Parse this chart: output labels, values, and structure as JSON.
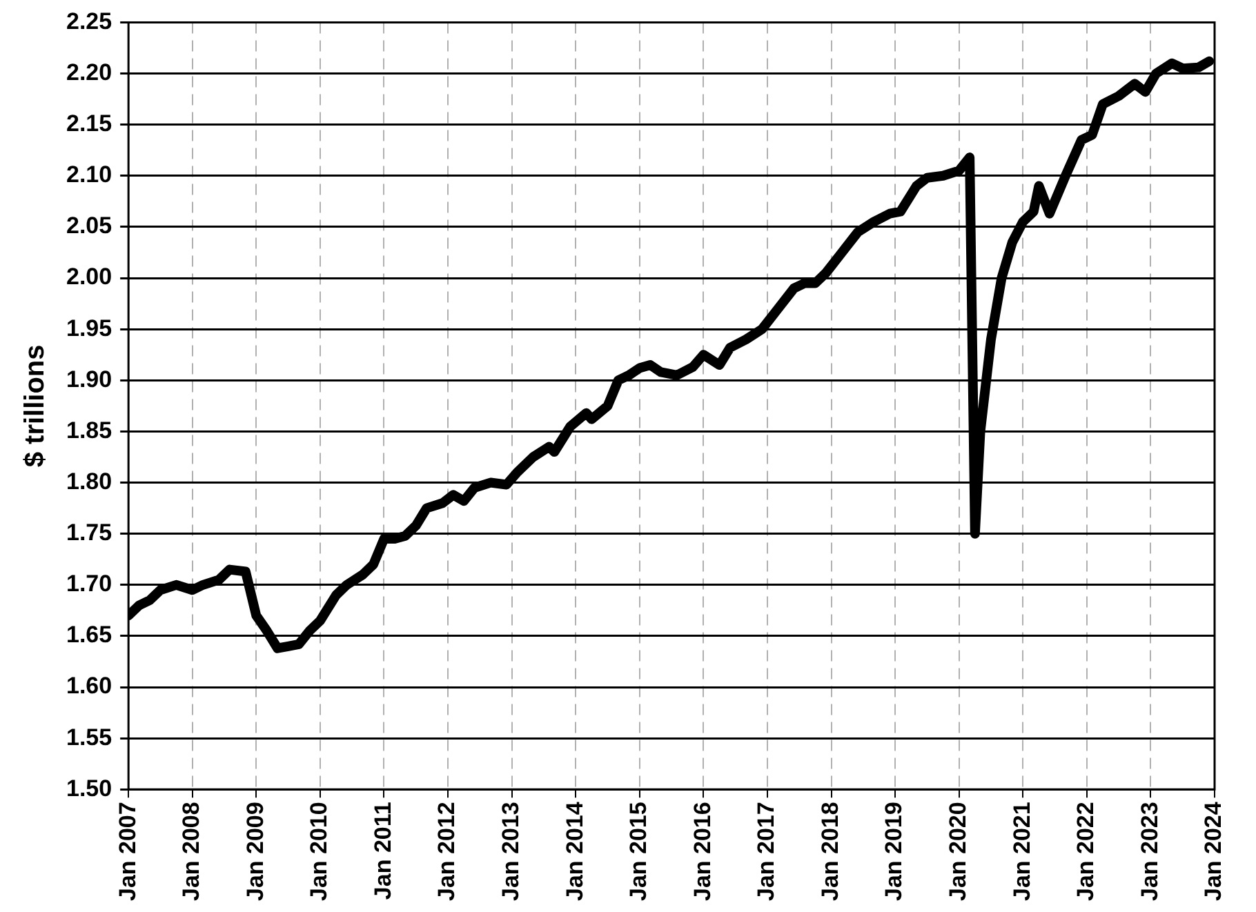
{
  "chart_data": {
    "type": "line",
    "ylabel": "$ trillions",
    "x": [
      "2007-01",
      "2007-03",
      "2007-05",
      "2007-07",
      "2007-10",
      "2008-01",
      "2008-03",
      "2008-06",
      "2008-08",
      "2008-11",
      "2009-01",
      "2009-03",
      "2009-05",
      "2009-07",
      "2009-09",
      "2009-11",
      "2010-01",
      "2010-04",
      "2010-06",
      "2010-09",
      "2010-11",
      "2011-01",
      "2011-03",
      "2011-05",
      "2011-07",
      "2011-09",
      "2011-12",
      "2012-02",
      "2012-04",
      "2012-06",
      "2012-09",
      "2012-12",
      "2013-02",
      "2013-05",
      "2013-08",
      "2013-09",
      "2013-12",
      "2014-03",
      "2014-04",
      "2014-07",
      "2014-09",
      "2014-11",
      "2015-01",
      "2015-03",
      "2015-05",
      "2015-08",
      "2015-11",
      "2016-01",
      "2016-04",
      "2016-06",
      "2016-09",
      "2016-12",
      "2017-03",
      "2017-06",
      "2017-08",
      "2017-10",
      "2017-12",
      "2018-03",
      "2018-06",
      "2018-09",
      "2018-12",
      "2019-02",
      "2019-05",
      "2019-07",
      "2019-10",
      "2020-01",
      "2020-03",
      "2020-04",
      "2020-05",
      "2020-07",
      "2020-09",
      "2020-11",
      "2021-01",
      "2021-03",
      "2021-04",
      "2021-06",
      "2021-09",
      "2021-12",
      "2022-02",
      "2022-04",
      "2022-07",
      "2022-10",
      "2022-12",
      "2023-02",
      "2023-05",
      "2023-07",
      "2023-10",
      "2023-12"
    ],
    "series": [
      {
        "color": "#000000",
        "values": [
          1.67,
          1.68,
          1.685,
          1.695,
          1.7,
          1.695,
          1.7,
          1.705,
          1.715,
          1.713,
          1.67,
          1.655,
          1.638,
          1.64,
          1.642,
          1.655,
          1.665,
          1.69,
          1.7,
          1.71,
          1.72,
          1.745,
          1.745,
          1.748,
          1.758,
          1.775,
          1.78,
          1.788,
          1.782,
          1.795,
          1.8,
          1.798,
          1.81,
          1.825,
          1.835,
          1.83,
          1.855,
          1.868,
          1.862,
          1.875,
          1.9,
          1.905,
          1.912,
          1.915,
          1.908,
          1.905,
          1.913,
          1.925,
          1.915,
          1.932,
          1.94,
          1.95,
          1.97,
          1.99,
          1.995,
          1.995,
          2.005,
          2.025,
          2.045,
          2.055,
          2.063,
          2.065,
          2.09,
          2.098,
          2.1,
          2.105,
          2.118,
          1.75,
          1.85,
          1.94,
          2.0,
          2.035,
          2.055,
          2.065,
          2.09,
          2.063,
          2.1,
          2.135,
          2.14,
          2.17,
          2.178,
          2.19,
          2.182,
          2.2,
          2.21,
          2.205,
          2.206,
          2.212
        ]
      }
    ],
    "xlim": [
      "2007-01",
      "2024-01"
    ],
    "xticks": [
      {
        "value": "2007-01",
        "label": "Jan 2007"
      },
      {
        "value": "2008-01",
        "label": "Jan 2008"
      },
      {
        "value": "2009-01",
        "label": "Jan 2009"
      },
      {
        "value": "2010-01",
        "label": "Jan 2010"
      },
      {
        "value": "2011-01",
        "label": "Jan 2011"
      },
      {
        "value": "2012-01",
        "label": "Jan 2012"
      },
      {
        "value": "2013-01",
        "label": "Jan 2013"
      },
      {
        "value": "2014-01",
        "label": "Jan 2014"
      },
      {
        "value": "2015-01",
        "label": "Jan 2015"
      },
      {
        "value": "2016-01",
        "label": "Jan 2016"
      },
      {
        "value": "2017-01",
        "label": "Jan 2017"
      },
      {
        "value": "2018-01",
        "label": "Jan 2018"
      },
      {
        "value": "2019-01",
        "label": "Jan 2019"
      },
      {
        "value": "2020-01",
        "label": "Jan 2020"
      },
      {
        "value": "2021-01",
        "label": "Jan 2021"
      },
      {
        "value": "2022-01",
        "label": "Jan 2022"
      },
      {
        "value": "2023-01",
        "label": "Jan 2023"
      },
      {
        "value": "2024-01",
        "label": "Jan 2024"
      }
    ],
    "ylim": [
      1.5,
      2.25
    ],
    "yticks": [
      {
        "value": 1.5,
        "label": "1.50"
      },
      {
        "value": 1.55,
        "label": "1.55"
      },
      {
        "value": 1.6,
        "label": "1.60"
      },
      {
        "value": 1.65,
        "label": "1.65"
      },
      {
        "value": 1.7,
        "label": "1.70"
      },
      {
        "value": 1.75,
        "label": "1.75"
      },
      {
        "value": 1.8,
        "label": "1.80"
      },
      {
        "value": 1.85,
        "label": "1.85"
      },
      {
        "value": 1.9,
        "label": "1.90"
      },
      {
        "value": 1.95,
        "label": "1.95"
      },
      {
        "value": 2.0,
        "label": "2.00"
      },
      {
        "value": 2.05,
        "label": "2.05"
      },
      {
        "value": 2.1,
        "label": "2.10"
      },
      {
        "value": 2.15,
        "label": "2.15"
      },
      {
        "value": 2.2,
        "label": "2.20"
      },
      {
        "value": 2.25,
        "label": "2.25"
      }
    ],
    "grid": true,
    "legend": false,
    "marker": "none",
    "line_style": "solid"
  }
}
